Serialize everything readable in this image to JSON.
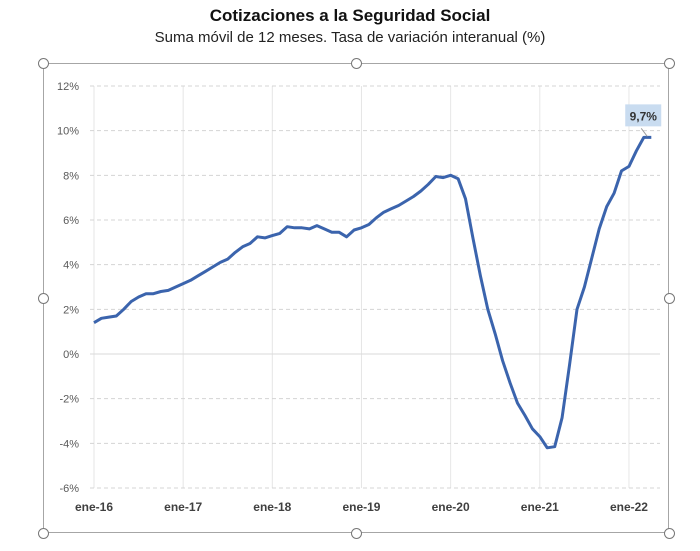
{
  "chart_data": {
    "type": "line",
    "title": "Cotizaciones a la Seguridad Social",
    "subtitle": "Suma móvil de 12 meses. Tasa de variación interanual (%)",
    "xlabel": "",
    "ylabel": "",
    "ylim": [
      -6,
      12
    ],
    "yticks": [
      -6,
      -4,
      -2,
      0,
      2,
      4,
      6,
      8,
      10,
      12
    ],
    "ytick_labels": [
      "-6%",
      "-4%",
      "-2%",
      "0%",
      "2%",
      "4%",
      "6%",
      "8%",
      "10%",
      "12%"
    ],
    "xtick_labels": [
      "ene-16",
      "ene-17",
      "ene-18",
      "ene-19",
      "ene-20",
      "ene-21",
      "ene-22"
    ],
    "start": "2016-01",
    "frequency": "monthly",
    "grid": true,
    "series": [
      {
        "name": "Cotizaciones",
        "color": "#3b64ad",
        "values": [
          1.4,
          1.6,
          1.65,
          1.7,
          2.0,
          2.35,
          2.55,
          2.7,
          2.7,
          2.8,
          2.85,
          3.0,
          3.15,
          3.3,
          3.5,
          3.7,
          3.9,
          4.1,
          4.25,
          4.55,
          4.8,
          4.95,
          5.25,
          5.2,
          5.3,
          5.4,
          5.7,
          5.65,
          5.65,
          5.6,
          5.75,
          5.6,
          5.45,
          5.45,
          5.25,
          5.55,
          5.65,
          5.8,
          6.1,
          6.35,
          6.5,
          6.65,
          6.85,
          7.05,
          7.3,
          7.6,
          7.95,
          7.9,
          8.0,
          7.85,
          6.95,
          5.2,
          3.5,
          2.0,
          0.9,
          -0.3,
          -1.3,
          -2.2,
          -2.75,
          -3.35,
          -3.7,
          -4.2,
          -4.15,
          -2.85,
          -0.5,
          2.0,
          3.0,
          4.3,
          5.6,
          6.6,
          7.2,
          8.2,
          8.4,
          9.1,
          9.7,
          9.7
        ]
      }
    ],
    "annotations": [
      {
        "text": "9,7%",
        "point": "last"
      }
    ]
  }
}
